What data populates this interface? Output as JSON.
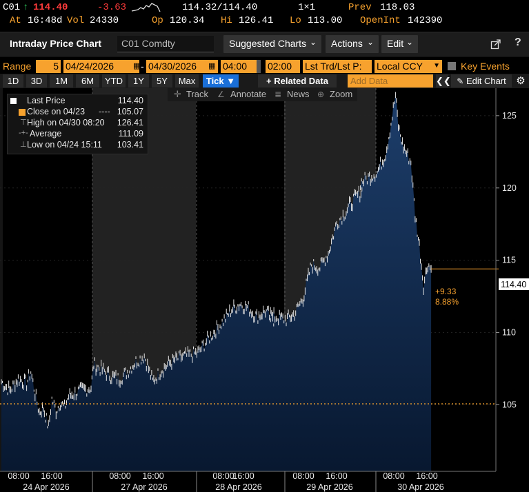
{
  "quote": {
    "ticker": "C01",
    "arrow": "↑",
    "last": "114.40",
    "change": "-3.63",
    "range_value": "114.32/114.40",
    "size": "1×1",
    "prev_label": "Prev",
    "prev": "118.03",
    "at_label": "At",
    "at_time": "16:48d",
    "vol_label": "Vol",
    "vol": "24330",
    "op_label": "Op",
    "op": "120.34",
    "hi_label": "Hi",
    "hi": "126.41",
    "lo_label": "Lo",
    "lo": "113.00",
    "oi_label": "OpenInt",
    "oi": "142390"
  },
  "header": {
    "title": "Intraday Price Chart",
    "security": "C01 Comdty",
    "suggested": "Suggested Charts",
    "actions": "Actions",
    "edit": "Edit"
  },
  "range_bar": {
    "range_label": "Range",
    "range_num": "5",
    "start_date": "04/24/2026",
    "dash": "-",
    "end_date": "04/30/2026",
    "start_time": "04:00",
    "end_time": "02:00",
    "price_field": "Lst Trd/Lst P:",
    "currency": "Local CCY",
    "key_events": "Key Events"
  },
  "period_bar": {
    "periods": [
      "1D",
      "3D",
      "1M",
      "6M",
      "YTD",
      "1Y",
      "5Y",
      "Max"
    ],
    "tick": "Tick ▼",
    "related": "+ Related Data",
    "add_data_placeholder": "Add Data",
    "edit_chart": "Edit Chart"
  },
  "toolbar": {
    "track": "Track",
    "annotate": "Annotate",
    "news": "News",
    "zoom": "Zoom"
  },
  "legend": {
    "last_label": "Last Price",
    "last_value": "114.40",
    "close_label": "Close on 04/23",
    "close_dash": "----",
    "close_value": "105.07",
    "high_label": "High on 04/30 08:20",
    "high_value": "126.41",
    "avg_label": "Average",
    "avg_value": "111.09",
    "low_label": "Low on 04/24 15:11",
    "low_value": "103.41"
  },
  "last_tag": {
    "value": "114.40",
    "change": "+9.33",
    "pct": "8.88%"
  },
  "colors": {
    "amber": "#f7a22e",
    "red": "#ff3b3b",
    "area_top": "#17345a",
    "area_bottom": "#0a1a33",
    "tick_blue": "#1a6fd8"
  },
  "chart_data": {
    "type": "area",
    "title": "",
    "xlabel": "",
    "ylabel": "",
    "ylim": [
      100.4,
      126.9
    ],
    "y_ticks": [
      105,
      110,
      115,
      120,
      125
    ],
    "reference_line": 105.07,
    "x_tick_labels": [
      "08:00",
      "16:00",
      "08:00",
      "16:00",
      "08:00",
      "16:00",
      "08:00",
      "16:00",
      "08:00",
      "16:00"
    ],
    "x_date_labels": [
      "24 Apr 2026",
      "27 Apr 2026",
      "28 Apr 2026",
      "29 Apr 2026",
      "30 Apr 2026"
    ],
    "series": [
      {
        "x": [
          "04/24 04:00",
          "04/24 06:00",
          "04/24 08:00",
          "04/24 10:00",
          "04/24 11:00",
          "04/24 12:00",
          "04/24 13:00",
          "04/24 14:00",
          "04/24 15:11",
          "04/24 16:00",
          "04/24 17:00",
          "04/24 18:00",
          "04/24 19:00",
          "04/24 20:00",
          "04/24 22:00",
          "04/25 00:00",
          "04/27 04:00",
          "04/27 06:00",
          "04/27 08:00",
          "04/27 10:00",
          "04/27 12:00",
          "04/27 14:00",
          "04/27 16:00",
          "04/27 18:00",
          "04/27 20:00",
          "04/27 22:00",
          "04/28 00:00",
          "04/28 04:00",
          "04/28 06:00",
          "04/28 08:00",
          "04/28 10:00",
          "04/28 12:00",
          "04/28 14:00",
          "04/28 16:00",
          "04/28 18:00",
          "04/28 20:00",
          "04/28 22:00",
          "04/29 00:00",
          "04/29 04:00",
          "04/29 06:00",
          "04/29 08:00",
          "04/29 10:00",
          "04/29 12:00",
          "04/29 14:00",
          "04/29 16:00",
          "04/29 18:00",
          "04/29 20:00",
          "04/29 22:00",
          "04/30 00:00",
          "04/30 04:00",
          "04/30 06:00",
          "04/30 07:00",
          "04/30 08:20",
          "04/30 09:00",
          "04/30 10:00",
          "04/30 12:00",
          "04/30 13:00",
          "04/30 14:00",
          "04/30 15:00",
          "04/30 16:00",
          "04/30 16:48"
        ],
        "y": [
          106.6,
          106.0,
          106.8,
          106.5,
          107.3,
          105.8,
          104.5,
          104.8,
          103.41,
          105.4,
          104.6,
          105.2,
          104.8,
          105.6,
          105.9,
          106.2,
          107.8,
          107.4,
          107.0,
          106.8,
          107.3,
          108.0,
          108.4,
          106.6,
          107.4,
          107.9,
          108.3,
          108.6,
          109.4,
          110.1,
          110.8,
          111.6,
          112.0,
          111.7,
          111.1,
          111.5,
          110.9,
          111.2,
          110.9,
          111.3,
          112.4,
          114.7,
          114.5,
          115.5,
          117.6,
          118.3,
          119.2,
          119.8,
          120.4,
          121.1,
          122.4,
          124.0,
          126.41,
          124.3,
          123.0,
          121.8,
          118.1,
          116.0,
          113.3,
          114.8,
          114.4
        ]
      }
    ]
  }
}
